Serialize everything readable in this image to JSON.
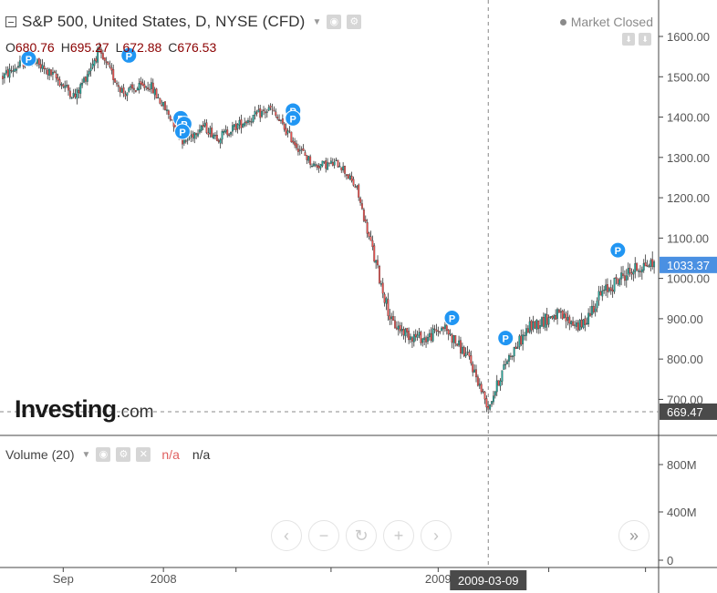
{
  "header": {
    "title": "S&P 500, United States, D, NYSE (CFD)",
    "ohlc": [
      {
        "label": "O",
        "value": "680.76"
      },
      {
        "label": "H",
        "value": "695.27"
      },
      {
        "label": "L",
        "value": "672.88"
      },
      {
        "label": "C",
        "value": "676.53"
      }
    ],
    "market_status": "Market Closed"
  },
  "brand": {
    "name": "Investing",
    "domain": ".com"
  },
  "volume": {
    "label": "Volume (20)",
    "value_1": "n/a",
    "value_2": "n/a"
  },
  "colors": {
    "up": "#26a69a",
    "down": "#ef5350",
    "wick": "#333333",
    "accent": "#4a90e2",
    "marker": "#2196f3"
  },
  "icons": {
    "settings": "gear-icon",
    "visibility": "eye-icon",
    "close": "close-icon"
  },
  "nav_buttons": [
    {
      "name": "scroll-left-button",
      "glyph": "‹"
    },
    {
      "name": "zoom-out-button",
      "glyph": "−"
    },
    {
      "name": "reset-button",
      "glyph": "↻"
    },
    {
      "name": "zoom-in-button",
      "glyph": "+"
    },
    {
      "name": "scroll-right-button",
      "glyph": "›"
    }
  ],
  "realtime_button": "»",
  "chart_data": {
    "type": "candlestick",
    "title": "S&P 500, United States, D, NYSE (CFD)",
    "ylim": [
      650,
      1680
    ],
    "y_ticks": [
      700,
      800,
      900,
      1000,
      1100,
      1200,
      1300,
      1400,
      1500,
      1600
    ],
    "y_tick_labels": [
      "700.00",
      "800.00",
      "900.00",
      "1000.00",
      "1100.00",
      "1200.00",
      "1300.00",
      "1400.00",
      "1500.00",
      "1600.00"
    ],
    "x_labels": [
      {
        "label": "Sep",
        "index": 35
      },
      {
        "label": "2008",
        "index": 93
      },
      {
        "label": "2009",
        "index": 252
      }
    ],
    "last_price": "1033.37",
    "crosshair": {
      "date": "2009-03-09",
      "price": "669.47",
      "index": 281
    },
    "volume_ticks": [
      "0",
      "400M",
      "800M"
    ],
    "series": [
      {
        "name": "",
        "anchors": [
          [
            0,
            1500
          ],
          [
            15,
            1545
          ],
          [
            30,
            1500
          ],
          [
            42,
            1450
          ],
          [
            55,
            1560
          ],
          [
            70,
            1460
          ],
          [
            85,
            1480
          ],
          [
            100,
            1380
          ],
          [
            105,
            1335
          ],
          [
            115,
            1380
          ],
          [
            125,
            1350
          ],
          [
            140,
            1390
          ],
          [
            155,
            1420
          ],
          [
            170,
            1330
          ],
          [
            180,
            1280
          ],
          [
            195,
            1285
          ],
          [
            205,
            1220
          ],
          [
            215,
            1050
          ],
          [
            225,
            890
          ],
          [
            235,
            860
          ],
          [
            245,
            850
          ],
          [
            255,
            880
          ],
          [
            270,
            800
          ],
          [
            281,
            680
          ],
          [
            292,
            800
          ],
          [
            305,
            880
          ],
          [
            320,
            910
          ],
          [
            335,
            880
          ],
          [
            345,
            955
          ],
          [
            360,
            1010
          ],
          [
            372,
            1035
          ]
        ]
      }
    ],
    "markers": [
      {
        "index": 15,
        "price": 1545
      },
      {
        "index": 73,
        "price": 1553
      },
      {
        "index": 103,
        "price": 1397
      },
      {
        "index": 105,
        "price": 1383
      },
      {
        "index": 104,
        "price": 1364
      },
      {
        "index": 168,
        "price": 1416
      },
      {
        "index": 168,
        "price": 1397
      },
      {
        "index": 260,
        "price": 902
      },
      {
        "index": 291,
        "price": 852
      },
      {
        "index": 356,
        "price": 1070
      }
    ]
  }
}
